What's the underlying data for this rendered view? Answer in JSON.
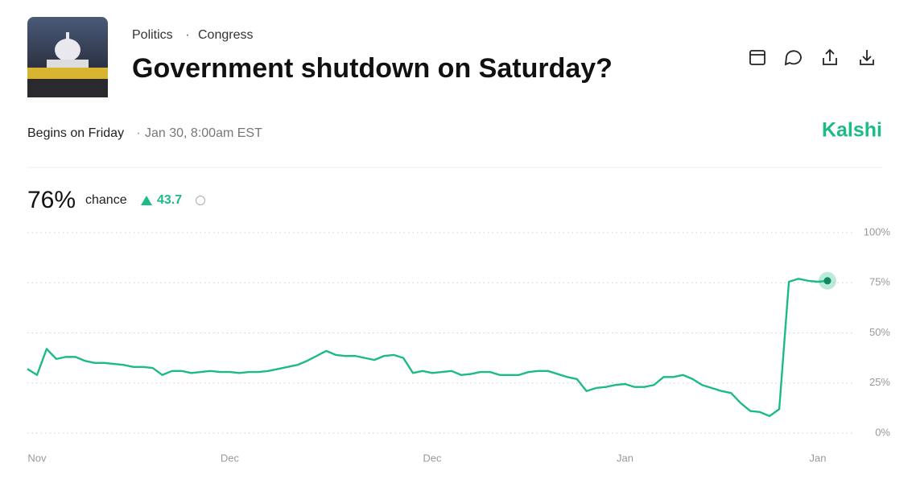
{
  "header": {
    "breadcrumb": [
      "Politics",
      "Congress"
    ],
    "separator": "·",
    "title": "Government shutdown on Saturday?"
  },
  "meta": {
    "begins": "Begins on Friday",
    "separator": "·",
    "date": "Jan 30, 8:00am EST",
    "brand": "Kalshi"
  },
  "summary": {
    "chance_value": "76%",
    "chance_label": "chance",
    "change": 43.7
  },
  "chart_data": {
    "type": "line",
    "color": "#1dbb84",
    "categories": [
      null,
      "Nov",
      null,
      null,
      null,
      null,
      null,
      null,
      null,
      null,
      null,
      null,
      null,
      null,
      null,
      null,
      null,
      null,
      null,
      null,
      null,
      "Dec",
      null,
      null,
      null,
      null,
      null,
      null,
      null,
      null,
      null,
      null,
      null,
      null,
      null,
      null,
      null,
      null,
      null,
      null,
      null,
      null,
      "Dec",
      null,
      null,
      null,
      null,
      null,
      null,
      null,
      null,
      null,
      null,
      null,
      null,
      null,
      null,
      null,
      null,
      null,
      null,
      null,
      "Jan",
      null,
      null,
      null,
      null,
      null,
      null,
      null,
      null,
      null,
      null,
      null,
      null,
      null,
      null,
      null,
      null,
      null,
      null,
      null,
      "Jan",
      null
    ],
    "values": [
      32,
      29,
      42,
      37,
      38,
      38,
      36,
      35,
      35,
      34.5,
      34,
      33,
      33,
      32.5,
      29,
      31,
      31,
      30,
      30.5,
      31,
      30.5,
      30.5,
      30,
      30.5,
      30.5,
      31,
      32,
      33,
      34,
      36,
      38.5,
      41,
      39,
      38.5,
      38.5,
      37.5,
      36.5,
      38.5,
      39,
      37.5,
      30,
      31,
      30,
      30.5,
      31,
      29,
      29.5,
      30.5,
      30.5,
      29,
      29,
      29,
      30.5,
      31,
      31,
      29.5,
      28,
      27,
      21,
      22.5,
      23,
      24,
      24.5,
      23,
      23,
      24,
      28,
      28,
      29,
      27,
      24,
      22.5,
      21,
      20,
      15,
      11,
      10.5,
      8.5,
      12,
      75.5,
      77,
      76,
      75.5,
      76
    ],
    "ylim": [
      0,
      100
    ],
    "yticks": [
      {
        "value": 0,
        "label": "0%"
      },
      {
        "value": 25,
        "label": "25%"
      },
      {
        "value": 50,
        "label": "50%"
      },
      {
        "value": 75,
        "label": "75%"
      },
      {
        "value": 100,
        "label": "100%"
      }
    ],
    "grid": true
  }
}
